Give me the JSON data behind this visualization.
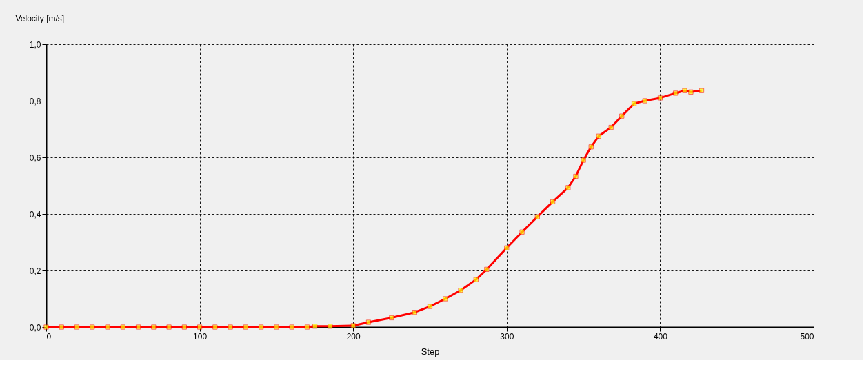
{
  "chart_data": {
    "type": "line",
    "xlabel": "Step",
    "ylabel": "Velocity [m/s]",
    "x": [
      0,
      10,
      20,
      30,
      40,
      50,
      60,
      70,
      80,
      90,
      100,
      110,
      120,
      130,
      140,
      150,
      160,
      170,
      175,
      185,
      200,
      210,
      225,
      240,
      250,
      260,
      270,
      280,
      287,
      300,
      310,
      320,
      330,
      340,
      345,
      350,
      355,
      360,
      368,
      375,
      383,
      390,
      400,
      410,
      416,
      420,
      427
    ],
    "series": [
      {
        "color": "#ffff00",
        "values": [
          0,
          0,
          0,
          0,
          0,
          0,
          0,
          0,
          0,
          0,
          0,
          0,
          0,
          0,
          0,
          0,
          0,
          0,
          0.003,
          0.003,
          0.005,
          0.017,
          0.033,
          0.052,
          0.073,
          0.1,
          0.13,
          0.168,
          0.204,
          0.28,
          0.336,
          0.39,
          0.443,
          0.493,
          0.533,
          0.59,
          0.637,
          0.675,
          0.706,
          0.746,
          0.79,
          0.8,
          0.81,
          0.827,
          0.836,
          0.831,
          0.836
        ]
      }
    ],
    "xlim": [
      0,
      500
    ],
    "xticks": [
      0,
      100,
      200,
      300,
      400,
      500
    ],
    "ylim": [
      0,
      1.0
    ],
    "yticks": [
      {
        "value": 0,
        "label": "0,0"
      },
      {
        "value": 0.2,
        "label": "0,2"
      },
      {
        "value": 0.4,
        "label": "0,4"
      },
      {
        "value": 0.6,
        "label": "0,6"
      },
      {
        "value": 0.8,
        "label": "0,8"
      },
      {
        "value": 1.0,
        "label": "1,0"
      }
    ],
    "grid": true,
    "marker": "square",
    "line_style": "solid"
  }
}
